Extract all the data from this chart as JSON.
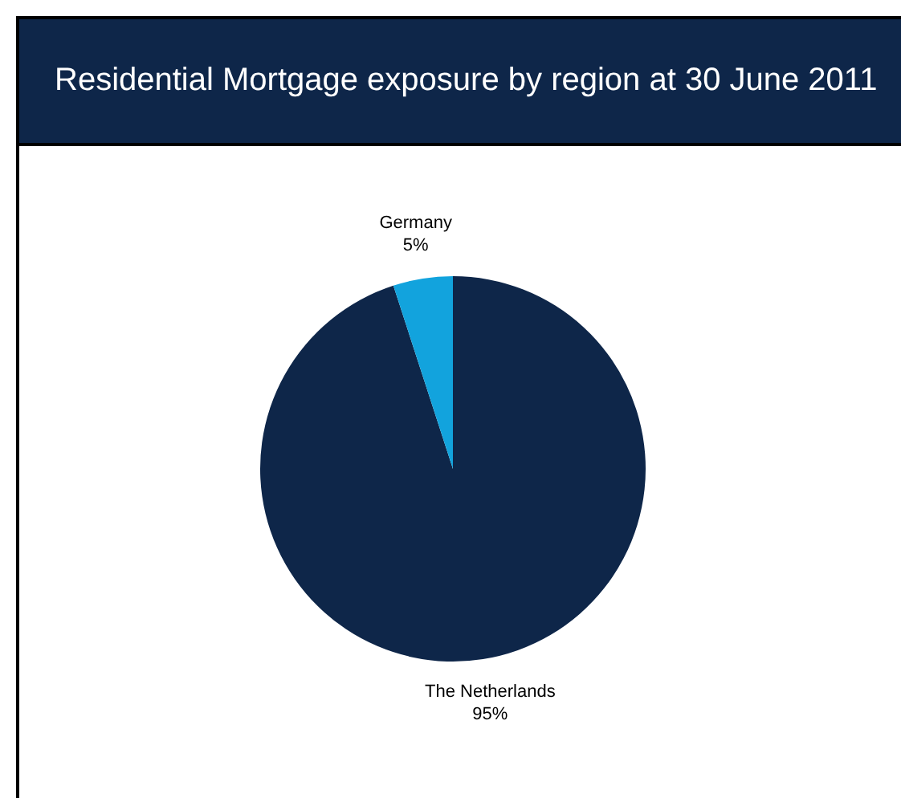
{
  "chart_data": {
    "type": "pie",
    "title": "Residential Mortgage exposure by region at 30 June 2011",
    "categories": [
      "The Netherlands",
      "Germany"
    ],
    "values": [
      95,
      5
    ],
    "value_labels": [
      "95%",
      "5%"
    ],
    "colors": [
      "#0e2649",
      "#12a3dd"
    ],
    "legend": false
  }
}
